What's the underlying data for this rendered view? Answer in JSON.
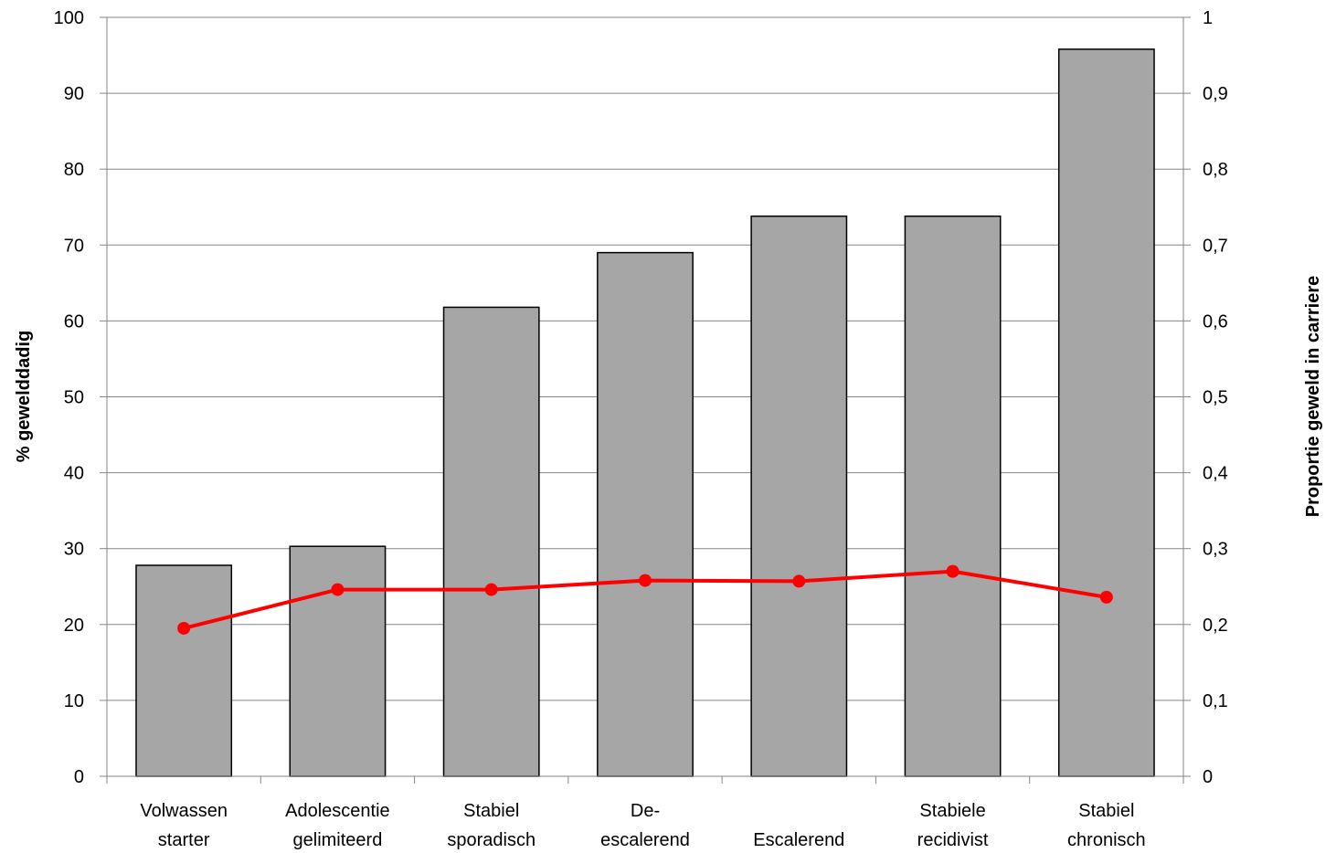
{
  "chart_data": {
    "type": "bar",
    "title": "",
    "categories": [
      [
        "Volwassen",
        "starter"
      ],
      [
        "Adolescentie",
        "gelimiteerd"
      ],
      [
        "Stabiel",
        "sporadisch"
      ],
      [
        "De-",
        "escalerend"
      ],
      [
        "Escalerend"
      ],
      [
        "Stabiele",
        "recidivist"
      ],
      [
        "Stabiel",
        "chronisch"
      ]
    ],
    "series": [
      {
        "type": "bar",
        "axis": "left",
        "values": [
          27.8,
          30.3,
          61.8,
          69.0,
          73.8,
          73.8,
          95.8
        ]
      },
      {
        "type": "line",
        "axis": "right",
        "values": [
          0.195,
          0.246,
          0.246,
          0.258,
          0.257,
          0.27,
          0.236
        ]
      }
    ],
    "ylabel": "% gewelddadig",
    "y2label": "Proportie geweld in carriere",
    "ylim": [
      0,
      100
    ],
    "y2lim": [
      0,
      1
    ],
    "yticks": [
      "0",
      "10",
      "20",
      "30",
      "40",
      "50",
      "60",
      "70",
      "80",
      "90",
      "100"
    ],
    "y2ticks": [
      "0",
      "0,1",
      "0,2",
      "0,3",
      "0,4",
      "0,5",
      "0,6",
      "0,7",
      "0,8",
      "0,9",
      "1"
    ],
    "grid": true,
    "legend": "none",
    "colors": {
      "bar_fill": "#a6a6a6",
      "bar_stroke": "#000000",
      "line": "#ff0000",
      "grid": "#868686"
    }
  }
}
